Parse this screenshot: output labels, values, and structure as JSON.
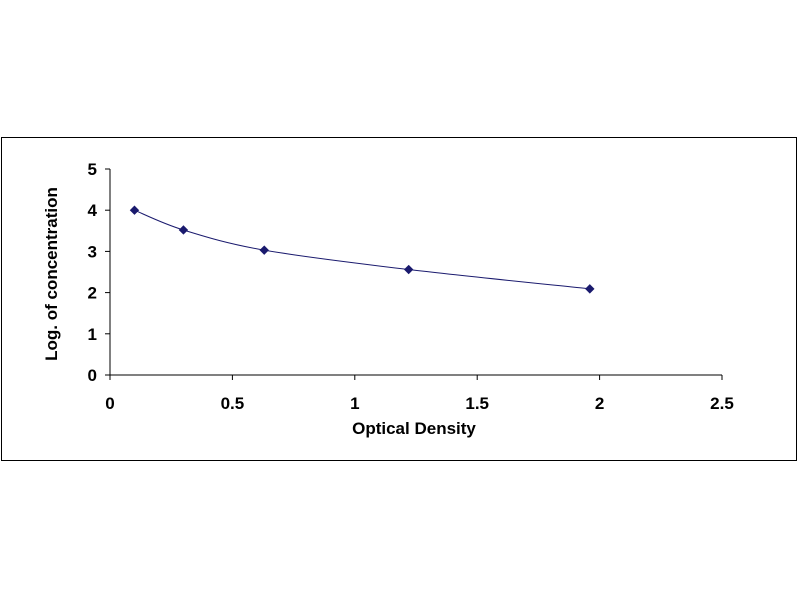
{
  "chart_data": {
    "type": "scatter",
    "title": "",
    "xlabel": "Optical Density",
    "ylabel": "Log. of concentration",
    "xlim": [
      0,
      2.5
    ],
    "ylim": [
      0,
      5
    ],
    "x_ticks": [
      "0",
      "0.5",
      "1",
      "1.5",
      "2",
      "2.5"
    ],
    "y_ticks": [
      "0",
      "1",
      "2",
      "3",
      "4",
      "5"
    ],
    "grid": false,
    "legend": "none",
    "series": [
      {
        "x": [
          0.1,
          0.3,
          0.63,
          1.22,
          1.96
        ],
        "y": [
          4.0,
          3.52,
          3.03,
          2.56,
          2.09
        ],
        "marker": "diamond",
        "color": "#1a1a6e",
        "trendline": true
      }
    ]
  }
}
